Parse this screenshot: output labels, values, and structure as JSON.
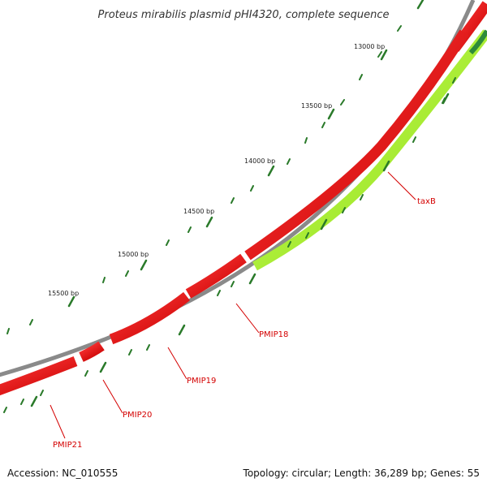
{
  "title": "Proteus mirabilis plasmid pHI4320, complete sequence",
  "ticks": [
    {
      "label": "13000 bp"
    },
    {
      "label": "13500 bp"
    },
    {
      "label": "14000 bp"
    },
    {
      "label": "14500 bp"
    },
    {
      "label": "15000 bp"
    },
    {
      "label": "15500 bp"
    }
  ],
  "genes": [
    {
      "label": "taxB",
      "strand": "reverse",
      "color": "#b3ff33"
    },
    {
      "label": "PMIP18",
      "strand": "forward",
      "color": "#ff0000"
    },
    {
      "label": "PMIP19",
      "strand": "forward",
      "color": "#ff0000"
    },
    {
      "label": "PMIP20",
      "strand": "forward",
      "color": "#ff0000"
    },
    {
      "label": "PMIP21",
      "strand": "forward",
      "color": "#ff0000"
    }
  ],
  "colors": {
    "backbone": "#8a8a8a",
    "forward_gene": "#ff0000",
    "reverse_gene": "#b3ff33",
    "other_gene": "#2e8b3a",
    "tick": "#2a7a2a",
    "label_line": "#d40000"
  },
  "footer": {
    "accession": "Accession: NC_010555",
    "summary": "Topology: circular; Length: 36,289 bp; Genes: 55"
  }
}
